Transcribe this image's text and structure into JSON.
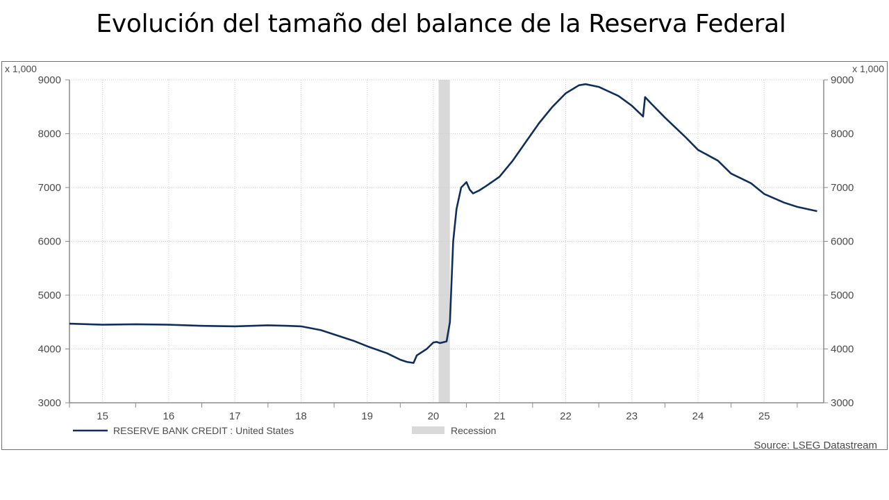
{
  "title": "Evolución del tamaño del balance de la Reserva Federal",
  "source": "Source: LSEG Datastream",
  "colors": {
    "series": "#0f2e5c",
    "recession": "#d9d9d9",
    "grid": "#c8c8c8",
    "axis": "#8a8a8a",
    "text": "#4a4a4a"
  },
  "chart_data": {
    "type": "line",
    "title": "Evolución del tamaño del balance de la Reserva Federal",
    "unit_label_left": "x 1,000",
    "unit_label_right": "x 1,000",
    "ylim": [
      3000,
      9000
    ],
    "xlim": [
      2014.5,
      2025.9
    ],
    "grid": true,
    "legend_position": "bottom",
    "y_ticks": [
      "3000",
      "4000",
      "5000",
      "6000",
      "7000",
      "8000",
      "9000"
    ],
    "y_tick_values": [
      3000,
      4000,
      5000,
      6000,
      7000,
      8000,
      9000
    ],
    "x_ticks": [
      "15",
      "16",
      "17",
      "18",
      "19",
      "20",
      "21",
      "22",
      "23",
      "24",
      "25"
    ],
    "x_tick_values": [
      2015,
      2016,
      2017,
      2018,
      2019,
      2020,
      2021,
      2022,
      2023,
      2024,
      2025
    ],
    "legend": [
      {
        "label": "RESERVE BANK CREDIT : United States",
        "kind": "line"
      },
      {
        "label": "Recession",
        "kind": "band"
      }
    ],
    "recession": {
      "start": 2020.08,
      "end": 2020.25
    },
    "series": [
      {
        "name": "RESERVE BANK CREDIT : United States",
        "x": [
          2014.5,
          2015.0,
          2015.5,
          2016.0,
          2016.5,
          2017.0,
          2017.5,
          2017.8,
          2018.0,
          2018.3,
          2018.5,
          2018.8,
          2019.0,
          2019.3,
          2019.5,
          2019.6,
          2019.7,
          2019.75,
          2019.9,
          2020.0,
          2020.05,
          2020.1,
          2020.2,
          2020.25,
          2020.3,
          2020.35,
          2020.42,
          2020.5,
          2020.55,
          2020.6,
          2020.7,
          2020.8,
          2021.0,
          2021.2,
          2021.4,
          2021.6,
          2021.8,
          2022.0,
          2022.2,
          2022.3,
          2022.5,
          2022.8,
          2023.0,
          2023.17,
          2023.2,
          2023.3,
          2023.5,
          2023.8,
          2024.0,
          2024.3,
          2024.5,
          2024.8,
          2025.0,
          2025.3,
          2025.5,
          2025.8
        ],
        "values": [
          4470,
          4450,
          4460,
          4450,
          4430,
          4420,
          4440,
          4430,
          4420,
          4350,
          4270,
          4150,
          4050,
          3920,
          3800,
          3760,
          3740,
          3880,
          4000,
          4120,
          4130,
          4110,
          4140,
          4500,
          6000,
          6600,
          7000,
          7100,
          6960,
          6890,
          6950,
          7030,
          7200,
          7500,
          7850,
          8200,
          8500,
          8750,
          8900,
          8920,
          8870,
          8700,
          8520,
          8320,
          8680,
          8550,
          8300,
          7950,
          7700,
          7500,
          7260,
          7080,
          6880,
          6720,
          6640,
          6560
        ]
      }
    ]
  }
}
